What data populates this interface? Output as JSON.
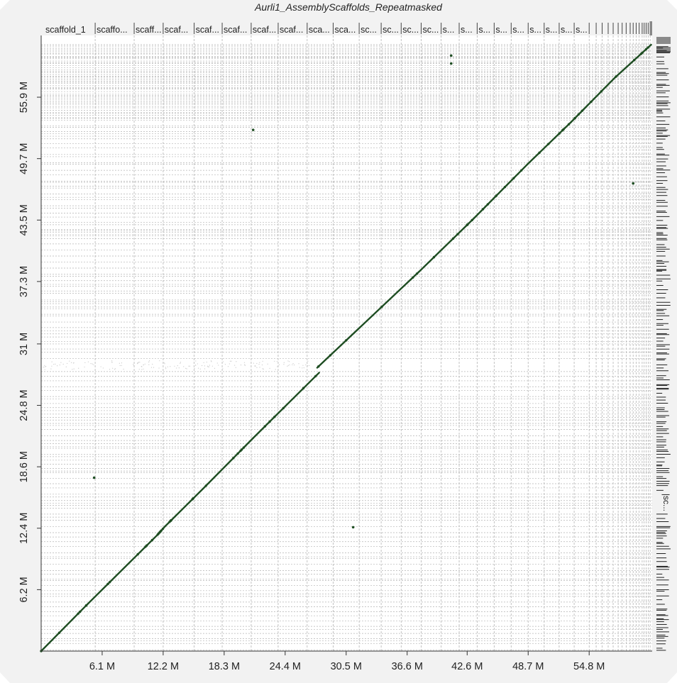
{
  "chart_data": {
    "type": "scatter",
    "title": "Aurli1_AssemblyScaffolds_Repeatmasked",
    "xlabel": "",
    "ylabel": "",
    "x_ticks": [
      {
        "value": 6.1,
        "label": "6.1 M"
      },
      {
        "value": 12.2,
        "label": "12.2 M"
      },
      {
        "value": 18.3,
        "label": "18.3 M"
      },
      {
        "value": 24.4,
        "label": "24.4 M"
      },
      {
        "value": 30.5,
        "label": "30.5 M"
      },
      {
        "value": 36.6,
        "label": "36.6 M"
      },
      {
        "value": 42.6,
        "label": "42.6 M"
      },
      {
        "value": 48.7,
        "label": "48.7 M"
      },
      {
        "value": 54.8,
        "label": "54.8 M"
      }
    ],
    "y_ticks": [
      {
        "value": 6.2,
        "label": "6.2 M"
      },
      {
        "value": 12.4,
        "label": "12.4 M"
      },
      {
        "value": 18.6,
        "label": "18.6 M"
      },
      {
        "value": 24.8,
        "label": "24.8 M"
      },
      {
        "value": 31.0,
        "label": "31 M"
      },
      {
        "value": 37.3,
        "label": "37.3 M"
      },
      {
        "value": 43.5,
        "label": "43.5 M"
      },
      {
        "value": 49.7,
        "label": "49.7 M"
      },
      {
        "value": 55.9,
        "label": "55.9 M"
      }
    ],
    "xlim": [
      0,
      61.1
    ],
    "ylim": [
      0,
      61.2
    ],
    "grid": true,
    "top_scaffold_labels": [
      {
        "label": "scaffold_1",
        "start": 0.0
      },
      {
        "label": "scaffo...",
        "start": 5.4
      },
      {
        "label": "scaff...",
        "start": 9.3
      },
      {
        "label": "scaf...",
        "start": 12.2
      },
      {
        "label": "scaf...",
        "start": 15.3
      },
      {
        "label": "scaf...",
        "start": 18.1
      },
      {
        "label": "scaf...",
        "start": 21.0
      },
      {
        "label": "scaf...",
        "start": 23.7
      },
      {
        "label": "sca...",
        "start": 26.6
      },
      {
        "label": "sca...",
        "start": 29.2
      },
      {
        "label": "sc...",
        "start": 31.8
      },
      {
        "label": "sc...",
        "start": 34.0
      },
      {
        "label": "sc...",
        "start": 36.0
      },
      {
        "label": "sc...",
        "start": 38.0
      },
      {
        "label": "s...",
        "start": 40.0
      },
      {
        "label": "s...",
        "start": 41.8
      },
      {
        "label": "s...",
        "start": 43.6
      },
      {
        "label": "s...",
        "start": 45.3
      },
      {
        "label": "s...",
        "start": 47.0
      },
      {
        "label": "s...",
        "start": 48.7
      },
      {
        "label": "s...",
        "start": 50.3
      },
      {
        "label": "s...",
        "start": 51.8
      },
      {
        "label": "s...",
        "start": 53.3
      }
    ],
    "top_small_scaffold_starts": [
      54.8,
      55.5,
      56.1,
      56.7,
      57.2,
      57.7,
      58.1,
      58.5,
      58.9,
      59.2,
      59.5,
      59.8,
      60.1,
      60.3,
      60.5,
      60.7,
      60.9
    ],
    "right_scaffold_label": {
      "label": "|sc...",
      "y_mid": 15.0
    },
    "diagonal_segments": [
      {
        "x": [
          0.0,
          4.6
        ],
        "y": [
          0.0,
          4.7
        ]
      },
      {
        "x": [
          4.6,
          11.6
        ],
        "y": [
          4.7,
          11.7
        ]
      },
      {
        "x": [
          11.6,
          12.4
        ],
        "y": [
          11.7,
          12.6
        ]
      },
      {
        "x": [
          12.4,
          16.2
        ],
        "y": [
          12.6,
          16.4
        ]
      },
      {
        "x": [
          16.2,
          21.2
        ],
        "y": [
          16.4,
          21.5
        ]
      },
      {
        "x": [
          21.2,
          27.8
        ],
        "y": [
          21.5,
          28.1
        ]
      },
      {
        "x": [
          27.6,
          37.8
        ],
        "y": [
          28.6,
          38.3
        ]
      },
      {
        "x": [
          37.8,
          43.2
        ],
        "y": [
          38.3,
          43.6
        ]
      },
      {
        "x": [
          43.2,
          48.6
        ],
        "y": [
          43.6,
          49.1
        ]
      },
      {
        "x": [
          48.6,
          53.0
        ],
        "y": [
          49.1,
          53.4
        ]
      },
      {
        "x": [
          53.0,
          57.4
        ],
        "y": [
          53.4,
          57.9
        ]
      },
      {
        "x": [
          57.4,
          61.0
        ],
        "y": [
          57.9,
          61.2
        ]
      }
    ],
    "off_diagonal_points": [
      {
        "x": 21.2,
        "y": 52.6
      },
      {
        "x": 41.0,
        "y": 60.1
      },
      {
        "x": 41.0,
        "y": 59.3
      },
      {
        "x": 59.2,
        "y": 47.2
      },
      {
        "x": 31.2,
        "y": 12.5
      },
      {
        "x": 5.3,
        "y": 17.5
      }
    ],
    "sparse_band_y": [
      28.4,
      29.3
    ],
    "colors": {
      "points": "#1e4d22",
      "grid": "#b4b4b4",
      "background": "#f2f2f2",
      "panel": "#ffffff",
      "text": "#222222"
    }
  }
}
